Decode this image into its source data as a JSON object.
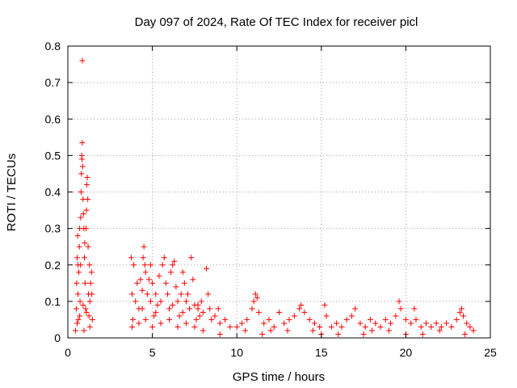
{
  "chart_data": {
    "type": "scatter",
    "title": "Day 097 of 2024, Rate Of TEC Index for receiver picl",
    "xlabel": "GPS time / hours",
    "ylabel": "ROTI / TECUs",
    "xlim": [
      0,
      25
    ],
    "ylim": [
      0,
      0.8
    ],
    "xticks": [
      "0",
      "5",
      "10",
      "15",
      "20",
      "25"
    ],
    "yticks": [
      "0",
      "0.1",
      "0.2",
      "0.3",
      "0.4",
      "0.5",
      "0.6",
      "0.7",
      "0.8"
    ],
    "grid": true,
    "marker": "+",
    "color": "#ff0000",
    "series": [
      {
        "points": [
          [
            0.45,
            0.02
          ],
          [
            0.5,
            0.08
          ],
          [
            0.52,
            0.15
          ],
          [
            0.55,
            0.22
          ],
          [
            0.58,
            0.28
          ],
          [
            0.6,
            0.12
          ],
          [
            0.62,
            0.05
          ],
          [
            0.65,
            0.18
          ],
          [
            0.68,
            0.25
          ],
          [
            0.7,
            0.3
          ],
          [
            0.72,
            0.1
          ],
          [
            0.75,
            0.2
          ],
          [
            0.76,
            0.33
          ],
          [
            0.78,
            0.4
          ],
          [
            0.8,
            0.45
          ],
          [
            0.82,
            0.5
          ],
          [
            0.84,
            0.49
          ],
          [
            0.85,
            0.535
          ],
          [
            0.86,
            0.76
          ],
          [
            0.88,
            0.47
          ],
          [
            0.9,
            0.38
          ],
          [
            0.92,
            0.34
          ],
          [
            0.95,
            0.3
          ],
          [
            0.98,
            0.22
          ],
          [
            1.0,
            0.26
          ],
          [
            1.02,
            0.15
          ],
          [
            1.05,
            0.08
          ],
          [
            1.08,
            0.3
          ],
          [
            1.1,
            0.35
          ],
          [
            1.12,
            0.42
          ],
          [
            1.15,
            0.44
          ],
          [
            1.18,
            0.38
          ],
          [
            1.2,
            0.25
          ],
          [
            1.22,
            0.12
          ],
          [
            1.25,
            0.06
          ],
          [
            1.28,
            0.2
          ],
          [
            1.3,
            0.1
          ],
          [
            1.35,
            0.15
          ],
          [
            1.4,
            0.18
          ],
          [
            1.45,
            0.05
          ],
          [
            0.55,
            0.04
          ],
          [
            0.7,
            0.06
          ],
          [
            0.9,
            0.09
          ],
          [
            1.1,
            0.07
          ],
          [
            1.3,
            0.03
          ],
          [
            1.42,
            0.12
          ],
          [
            0.6,
            0.2
          ],
          [
            0.95,
            0.02
          ],
          [
            3.75,
            0.22
          ],
          [
            3.8,
            0.12
          ],
          [
            3.85,
            0.05
          ],
          [
            3.9,
            0.2
          ],
          [
            4.0,
            0.1
          ],
          [
            4.1,
            0.15
          ],
          [
            4.2,
            0.08
          ],
          [
            4.3,
            0.16
          ],
          [
            4.4,
            0.13
          ],
          [
            4.45,
            0.22
          ],
          [
            4.5,
            0.25
          ],
          [
            4.55,
            0.2
          ],
          [
            4.6,
            0.18
          ],
          [
            4.7,
            0.12
          ],
          [
            4.8,
            0.16
          ],
          [
            4.9,
            0.1
          ],
          [
            5.0,
            0.15
          ],
          [
            5.1,
            0.06
          ],
          [
            5.2,
            0.12
          ],
          [
            5.3,
            0.09
          ],
          [
            5.4,
            0.17
          ],
          [
            5.5,
            0.1
          ],
          [
            5.6,
            0.2
          ],
          [
            5.7,
            0.22
          ],
          [
            5.8,
            0.15
          ],
          [
            5.9,
            0.12
          ],
          [
            6.0,
            0.08
          ],
          [
            6.1,
            0.18
          ],
          [
            6.2,
            0.2
          ],
          [
            6.3,
            0.21
          ],
          [
            6.4,
            0.14
          ],
          [
            6.5,
            0.1
          ],
          [
            6.6,
            0.06
          ],
          [
            6.7,
            0.12
          ],
          [
            6.8,
            0.18
          ],
          [
            6.9,
            0.15
          ],
          [
            7.0,
            0.1
          ],
          [
            7.1,
            0.12
          ],
          [
            7.2,
            0.08
          ],
          [
            7.3,
            0.22
          ],
          [
            7.4,
            0.16
          ],
          [
            7.5,
            0.09
          ],
          [
            7.6,
            0.05
          ],
          [
            7.7,
            0.08
          ],
          [
            7.8,
            0.06
          ],
          [
            7.9,
            0.1
          ],
          [
            8.0,
            0.07
          ],
          [
            8.2,
            0.19
          ],
          [
            8.3,
            0.12
          ],
          [
            8.4,
            0.08
          ],
          [
            8.5,
            0.05
          ],
          [
            8.7,
            0.06
          ],
          [
            8.9,
            0.08
          ],
          [
            9.0,
            0.04
          ],
          [
            9.3,
            0.05
          ],
          [
            9.6,
            0.03
          ],
          [
            3.8,
            0.03
          ],
          [
            4.2,
            0.04
          ],
          [
            4.6,
            0.05
          ],
          [
            5.0,
            0.03
          ],
          [
            5.5,
            0.04
          ],
          [
            6.0,
            0.05
          ],
          [
            6.5,
            0.03
          ],
          [
            7.0,
            0.04
          ],
          [
            7.5,
            0.03
          ],
          [
            8.0,
            0.02
          ],
          [
            4.4,
            0.08
          ],
          [
            5.2,
            0.07
          ],
          [
            6.2,
            0.09
          ],
          [
            6.8,
            0.07
          ],
          [
            7.7,
            0.09
          ],
          [
            4.9,
            0.2
          ],
          [
            10.0,
            0.03
          ],
          [
            10.3,
            0.04
          ],
          [
            10.6,
            0.05
          ],
          [
            10.9,
            0.08
          ],
          [
            11.0,
            0.1
          ],
          [
            11.1,
            0.12
          ],
          [
            11.2,
            0.11
          ],
          [
            11.3,
            0.07
          ],
          [
            11.6,
            0.04
          ],
          [
            11.9,
            0.05
          ],
          [
            12.2,
            0.03
          ],
          [
            12.5,
            0.07
          ],
          [
            12.8,
            0.04
          ],
          [
            13.1,
            0.05
          ],
          [
            13.4,
            0.06
          ],
          [
            13.7,
            0.08
          ],
          [
            13.8,
            0.09
          ],
          [
            14.0,
            0.07
          ],
          [
            14.3,
            0.05
          ],
          [
            14.6,
            0.04
          ],
          [
            14.9,
            0.03
          ],
          [
            15.2,
            0.09
          ],
          [
            15.3,
            0.06
          ],
          [
            15.6,
            0.03
          ],
          [
            15.9,
            0.04
          ],
          [
            16.2,
            0.03
          ],
          [
            16.5,
            0.05
          ],
          [
            16.8,
            0.06
          ],
          [
            17.0,
            0.08
          ],
          [
            17.3,
            0.04
          ],
          [
            17.6,
            0.03
          ],
          [
            17.9,
            0.05
          ],
          [
            18.2,
            0.04
          ],
          [
            18.5,
            0.03
          ],
          [
            18.8,
            0.05
          ],
          [
            19.1,
            0.04
          ],
          [
            19.4,
            0.06
          ],
          [
            19.6,
            0.1
          ],
          [
            19.7,
            0.08
          ],
          [
            20.0,
            0.05
          ],
          [
            20.3,
            0.04
          ],
          [
            20.5,
            0.08
          ],
          [
            20.6,
            0.05
          ],
          [
            20.9,
            0.03
          ],
          [
            21.2,
            0.04
          ],
          [
            21.5,
            0.03
          ],
          [
            21.8,
            0.04
          ],
          [
            22.1,
            0.03
          ],
          [
            22.4,
            0.04
          ],
          [
            22.7,
            0.03
          ],
          [
            23.0,
            0.05
          ],
          [
            23.2,
            0.07
          ],
          [
            23.3,
            0.08
          ],
          [
            23.4,
            0.06
          ],
          [
            23.6,
            0.04
          ],
          [
            23.8,
            0.03
          ],
          [
            24.0,
            0.02
          ],
          [
            10.5,
            0.02
          ],
          [
            12.0,
            0.02
          ],
          [
            14.5,
            0.02
          ],
          [
            16.0,
            0.01
          ],
          [
            18.0,
            0.02
          ],
          [
            20.0,
            0.01
          ],
          [
            22.0,
            0.02
          ],
          [
            9.0,
            0.01
          ],
          [
            11.5,
            0.01
          ],
          [
            13.0,
            0.02
          ],
          [
            15.0,
            0.01
          ],
          [
            17.5,
            0.01
          ],
          [
            19.0,
            0.02
          ],
          [
            21.0,
            0.01
          ],
          [
            23.5,
            0.01
          ]
        ]
      }
    ]
  }
}
